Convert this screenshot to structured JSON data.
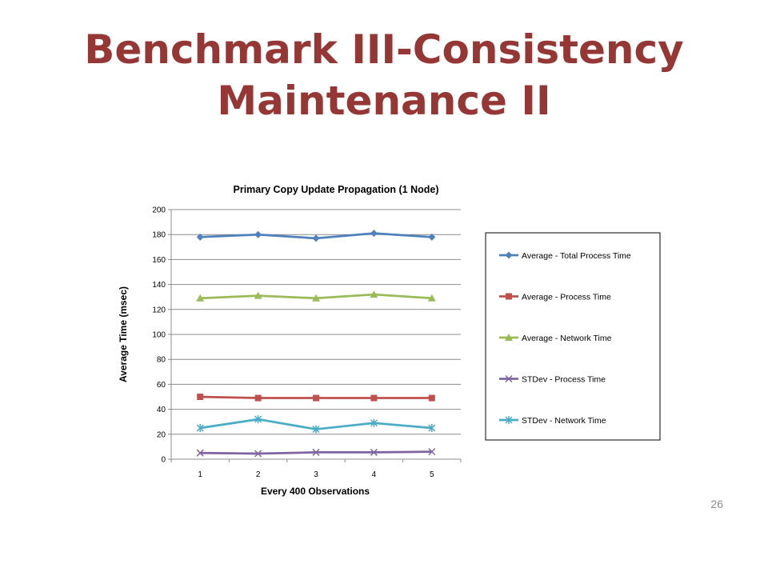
{
  "slide": {
    "title_line1": "Benchmark III-Consistency",
    "title_line2": "Maintenance II",
    "page_number": "26"
  },
  "chart_data": {
    "type": "line",
    "title": "Primary Copy Update Propagation (1 Node)",
    "xlabel": "Every 400 Observations",
    "ylabel": "Average Time (msec)",
    "categories": [
      "1",
      "2",
      "3",
      "4",
      "5"
    ],
    "ylim": [
      0,
      200
    ],
    "yticks": [
      0,
      20,
      40,
      60,
      80,
      100,
      120,
      140,
      160,
      180,
      200
    ],
    "grid": true,
    "legend_position": "right",
    "series": [
      {
        "name": "Average - Total Process Time",
        "values": [
          178,
          180,
          177,
          181,
          178
        ],
        "color": "#4F81BD",
        "marker": "diamond"
      },
      {
        "name": "Average - Process Time",
        "values": [
          50,
          49,
          49,
          49,
          49
        ],
        "color": "#C0504D",
        "marker": "square"
      },
      {
        "name": "Average - Network Time",
        "values": [
          129,
          131,
          129,
          132,
          129
        ],
        "color": "#9BBB59",
        "marker": "triangle"
      },
      {
        "name": "STDev - Process Time",
        "values": [
          5,
          4.5,
          5.5,
          5.5,
          6
        ],
        "color": "#8064A2",
        "marker": "x"
      },
      {
        "name": "STDev - Network Time",
        "values": [
          25,
          32,
          24,
          29,
          25
        ],
        "color": "#4BACC6",
        "marker": "star"
      }
    ]
  }
}
